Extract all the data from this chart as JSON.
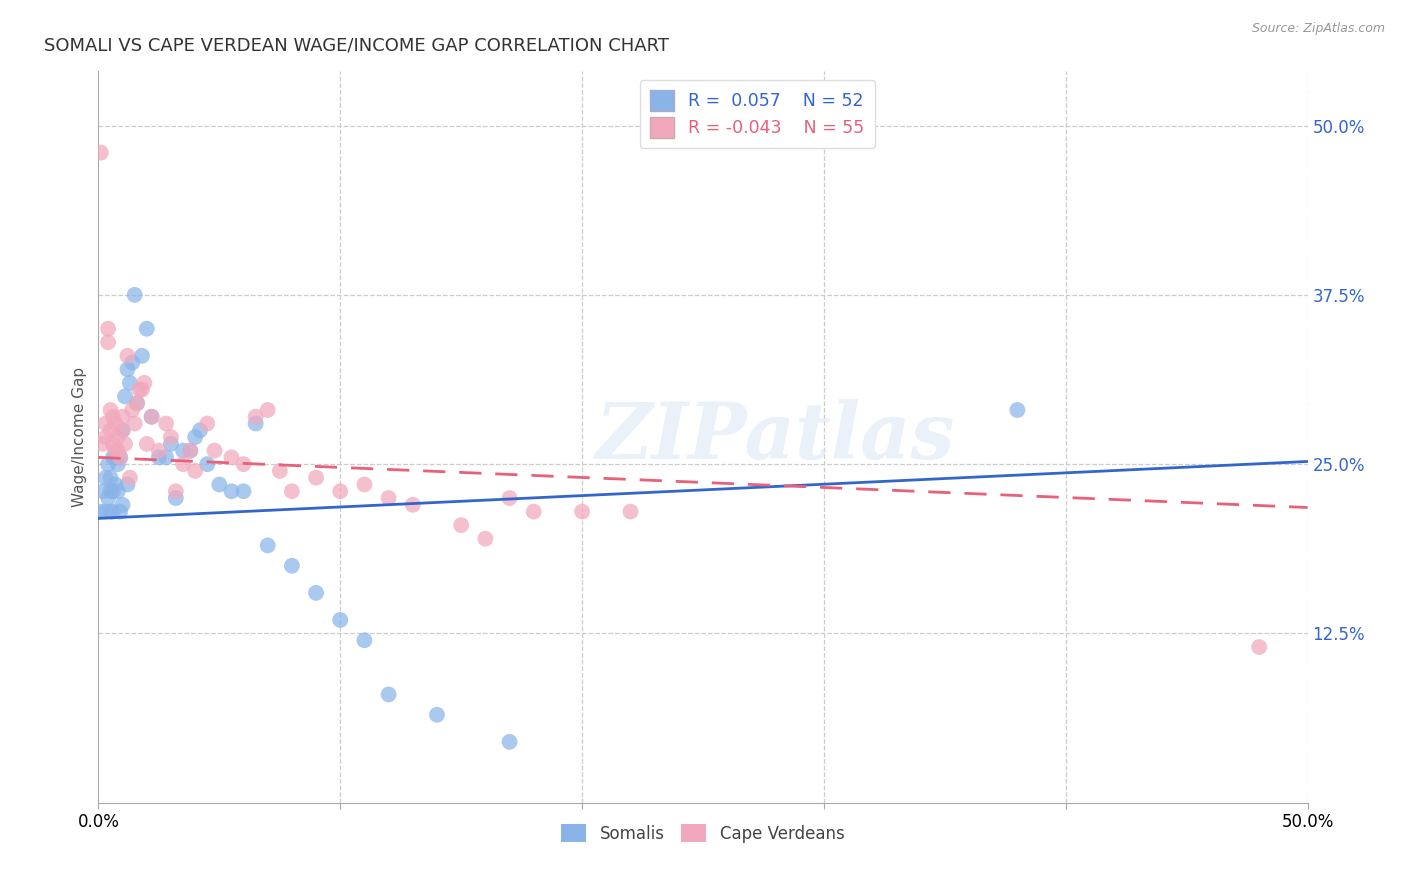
{
  "title": "SOMALI VS CAPE VERDEAN WAGE/INCOME GAP CORRELATION CHART",
  "source": "Source: ZipAtlas.com",
  "ylabel": "Wage/Income Gap",
  "ytick_labels": [
    "50.0%",
    "37.5%",
    "25.0%",
    "12.5%"
  ],
  "ytick_values": [
    0.5,
    0.375,
    0.25,
    0.125
  ],
  "xlim": [
    0.0,
    0.5
  ],
  "ylim": [
    0.0,
    0.54
  ],
  "xtick_positions": [
    0.0,
    0.1,
    0.2,
    0.3,
    0.4,
    0.5
  ],
  "watermark": "ZIPatlas",
  "somali_color": "#8AB4E8",
  "capeverdean_color": "#F2A8BC",
  "somali_line_color": "#3366CC",
  "capeverdean_line_color": "#E8607A",
  "legend_somali_text": "R =  0.057   N = 52",
  "legend_cv_text": "R = -0.043   N = 55",
  "somali_x": [
    0.001,
    0.002,
    0.003,
    0.003,
    0.004,
    0.004,
    0.005,
    0.005,
    0.005,
    0.006,
    0.006,
    0.006,
    0.007,
    0.007,
    0.008,
    0.008,
    0.009,
    0.009,
    0.01,
    0.01,
    0.011,
    0.012,
    0.012,
    0.013,
    0.014,
    0.015,
    0.016,
    0.018,
    0.02,
    0.022,
    0.025,
    0.028,
    0.03,
    0.032,
    0.035,
    0.038,
    0.04,
    0.042,
    0.045,
    0.05,
    0.055,
    0.06,
    0.065,
    0.07,
    0.08,
    0.09,
    0.1,
    0.11,
    0.12,
    0.14,
    0.17,
    0.38
  ],
  "somali_y": [
    0.215,
    0.23,
    0.24,
    0.215,
    0.25,
    0.225,
    0.24,
    0.23,
    0.215,
    0.255,
    0.23,
    0.215,
    0.255,
    0.235,
    0.25,
    0.23,
    0.255,
    0.215,
    0.275,
    0.22,
    0.3,
    0.32,
    0.235,
    0.31,
    0.325,
    0.375,
    0.295,
    0.33,
    0.35,
    0.285,
    0.255,
    0.255,
    0.265,
    0.225,
    0.26,
    0.26,
    0.27,
    0.275,
    0.25,
    0.235,
    0.23,
    0.23,
    0.28,
    0.19,
    0.175,
    0.155,
    0.135,
    0.12,
    0.08,
    0.065,
    0.045,
    0.29
  ],
  "capeverdean_x": [
    0.001,
    0.002,
    0.003,
    0.003,
    0.004,
    0.004,
    0.005,
    0.005,
    0.006,
    0.006,
    0.007,
    0.007,
    0.008,
    0.008,
    0.009,
    0.01,
    0.01,
    0.011,
    0.012,
    0.013,
    0.014,
    0.015,
    0.016,
    0.017,
    0.018,
    0.019,
    0.02,
    0.022,
    0.025,
    0.028,
    0.03,
    0.032,
    0.035,
    0.038,
    0.04,
    0.045,
    0.048,
    0.055,
    0.06,
    0.065,
    0.07,
    0.075,
    0.08,
    0.09,
    0.1,
    0.11,
    0.12,
    0.13,
    0.15,
    0.16,
    0.17,
    0.18,
    0.2,
    0.22,
    0.48
  ],
  "capeverdean_y": [
    0.48,
    0.265,
    0.27,
    0.28,
    0.34,
    0.35,
    0.29,
    0.275,
    0.285,
    0.265,
    0.28,
    0.26,
    0.27,
    0.26,
    0.255,
    0.285,
    0.275,
    0.265,
    0.33,
    0.24,
    0.29,
    0.28,
    0.295,
    0.305,
    0.305,
    0.31,
    0.265,
    0.285,
    0.26,
    0.28,
    0.27,
    0.23,
    0.25,
    0.26,
    0.245,
    0.28,
    0.26,
    0.255,
    0.25,
    0.285,
    0.29,
    0.245,
    0.23,
    0.24,
    0.23,
    0.235,
    0.225,
    0.22,
    0.205,
    0.195,
    0.225,
    0.215,
    0.215,
    0.215,
    0.115
  ],
  "somali_line_x": [
    0.0,
    0.5
  ],
  "somali_line_y": [
    0.21,
    0.252
  ],
  "cv_line_x": [
    0.0,
    0.5
  ],
  "cv_line_y": [
    0.255,
    0.218
  ]
}
